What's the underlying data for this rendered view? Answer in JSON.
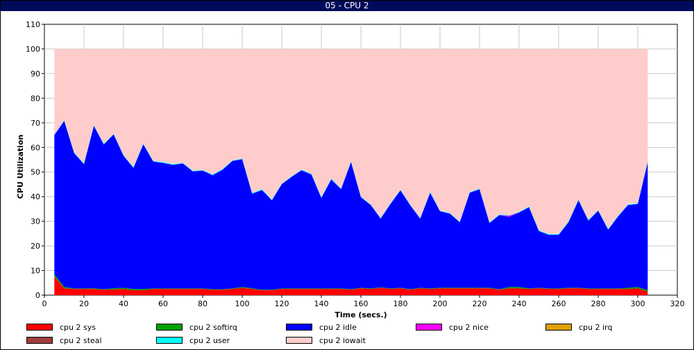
{
  "window": {
    "title": "05 - CPU 2"
  },
  "chart_data": {
    "type": "area",
    "stacked": true,
    "xlabel": "Time (secs.)",
    "ylabel": "CPU Utilization",
    "xlim": [
      0,
      320
    ],
    "ylim": [
      0,
      110
    ],
    "xticks": [
      0,
      20,
      40,
      60,
      80,
      100,
      120,
      140,
      160,
      180,
      200,
      220,
      240,
      260,
      280,
      300,
      320
    ],
    "yticks": [
      0,
      10,
      20,
      30,
      40,
      50,
      60,
      70,
      80,
      90,
      100,
      110
    ],
    "grid": true,
    "legend_position": "bottom",
    "x": [
      5,
      10,
      15,
      20,
      25,
      30,
      35,
      40,
      45,
      50,
      55,
      60,
      65,
      70,
      75,
      80,
      85,
      90,
      95,
      100,
      105,
      110,
      115,
      120,
      125,
      130,
      135,
      140,
      145,
      150,
      155,
      160,
      165,
      170,
      175,
      180,
      185,
      190,
      195,
      200,
      205,
      210,
      215,
      220,
      225,
      230,
      235,
      240,
      245,
      250,
      255,
      260,
      265,
      270,
      275,
      280,
      285,
      290,
      295,
      300,
      305
    ],
    "series": [
      {
        "name": "cpu 2 sys",
        "color": "#ff0000",
        "values": [
          7.5,
          2.8,
          2.5,
          2.5,
          2.5,
          2.2,
          2.3,
          2.5,
          2.0,
          2.0,
          2.5,
          2.5,
          2.5,
          2.5,
          2.5,
          2.5,
          2.2,
          2.2,
          2.5,
          3.0,
          2.5,
          2.0,
          2.0,
          2.5,
          2.5,
          2.5,
          2.5,
          2.5,
          2.5,
          2.5,
          2.2,
          2.8,
          2.5,
          3.0,
          2.5,
          2.8,
          2.2,
          2.8,
          2.5,
          2.8,
          2.8,
          2.8,
          2.8,
          2.8,
          2.8,
          2.2,
          2.8,
          2.8,
          2.5,
          2.8,
          2.5,
          2.5,
          2.8,
          2.8,
          2.5,
          2.5,
          2.5,
          2.5,
          2.5,
          2.8,
          1.5
        ]
      },
      {
        "name": "cpu 2 softirq",
        "color": "#00a000",
        "values": [
          1.0,
          0.5,
          0.2,
          0.2,
          0.3,
          0.2,
          0.5,
          0.5,
          0.5,
          0.5,
          0.2,
          0.2,
          0.2,
          0.2,
          0.2,
          0.2,
          0.2,
          0.2,
          0.2,
          0.3,
          0.3,
          0.2,
          0.2,
          0.2,
          0.2,
          0.2,
          0.2,
          0.2,
          0.2,
          0.2,
          0.2,
          0.2,
          0.2,
          0.2,
          0.2,
          0.2,
          0.2,
          0.2,
          0.2,
          0.2,
          0.2,
          0.2,
          0.2,
          0.2,
          0.2,
          0.2,
          0.5,
          0.5,
          0.2,
          0.2,
          0.2,
          0.2,
          0.2,
          0.2,
          0.2,
          0.2,
          0.2,
          0.2,
          0.5,
          0.5,
          0.5
        ]
      },
      {
        "name": "cpu 2 idle",
        "color": "#0000ff",
        "values": [
          56.5,
          67.5,
          55.0,
          50.5,
          66.0,
          58.8,
          62.5,
          53.6,
          49.2,
          58.8,
          51.6,
          51.0,
          50.2,
          50.8,
          47.6,
          47.9,
          46.3,
          48.5,
          51.8,
          51.9,
          38.4,
          40.5,
          36.3,
          42.4,
          45.4,
          48.0,
          46.3,
          36.8,
          44.3,
          40.4,
          51.7,
          36.8,
          33.9,
          27.9,
          34.4,
          39.6,
          34.0,
          28.1,
          38.9,
          31.1,
          30.1,
          26.6,
          38.6,
          40.0,
          26.3,
          30.1,
          28.5,
          30.3,
          33.0,
          23.0,
          21.8,
          21.8,
          26.7,
          35.6,
          27.6,
          31.6,
          23.9,
          29.2,
          33.6,
          33.7,
          52.0
        ]
      },
      {
        "name": "cpu 2 nice",
        "color": "#ff00ff",
        "values": [
          0.0,
          0.0,
          0.0,
          0.0,
          0.0,
          0.0,
          0.0,
          0.0,
          0.0,
          0.0,
          0.0,
          0.0,
          0.0,
          0.0,
          0.0,
          0.0,
          0.0,
          0.0,
          0.0,
          0.0,
          0.0,
          0.0,
          0.0,
          0.0,
          0.0,
          0.0,
          0.0,
          0.0,
          0.0,
          0.0,
          0.0,
          0.0,
          0.0,
          0.0,
          0.0,
          0.0,
          0.0,
          0.0,
          0.0,
          0.0,
          0.0,
          0.0,
          0.0,
          0.0,
          0.0,
          0.0,
          0.5,
          0.0,
          0.0,
          0.0,
          0.0,
          0.0,
          0.0,
          0.0,
          0.0,
          0.0,
          0.0,
          0.0,
          0.0,
          0.0,
          0.0
        ]
      },
      {
        "name": "cpu 2 irq",
        "color": "#e0a000",
        "values": [
          0.0,
          0.0,
          0.0,
          0.0,
          0.0,
          0.0,
          0.0,
          0.0,
          0.0,
          0.0,
          0.0,
          0.0,
          0.0,
          0.0,
          0.0,
          0.0,
          0.0,
          0.0,
          0.0,
          0.0,
          0.0,
          0.0,
          0.0,
          0.0,
          0.0,
          0.0,
          0.0,
          0.0,
          0.0,
          0.0,
          0.0,
          0.0,
          0.0,
          0.0,
          0.0,
          0.0,
          0.0,
          0.0,
          0.0,
          0.0,
          0.0,
          0.0,
          0.0,
          0.0,
          0.0,
          0.0,
          0.0,
          0.0,
          0.0,
          0.0,
          0.0,
          0.0,
          0.0,
          0.0,
          0.0,
          0.0,
          0.0,
          0.0,
          0.0,
          0.0,
          0.0
        ]
      },
      {
        "name": "cpu 2 steal",
        "color": "#a03c3c",
        "values": [
          0.0,
          0.0,
          0.0,
          0.0,
          0.0,
          0.0,
          0.0,
          0.0,
          0.0,
          0.0,
          0.0,
          0.0,
          0.0,
          0.0,
          0.0,
          0.0,
          0.0,
          0.0,
          0.0,
          0.0,
          0.0,
          0.0,
          0.0,
          0.0,
          0.0,
          0.0,
          0.0,
          0.0,
          0.0,
          0.0,
          0.0,
          0.0,
          0.0,
          0.0,
          0.0,
          0.0,
          0.0,
          0.0,
          0.0,
          0.0,
          0.0,
          0.0,
          0.0,
          0.0,
          0.0,
          0.0,
          0.0,
          0.0,
          0.0,
          0.0,
          0.0,
          0.0,
          0.0,
          0.0,
          0.0,
          0.0,
          0.0,
          0.0,
          0.0,
          0.0,
          0.0
        ]
      },
      {
        "name": "cpu 2 user",
        "color": "#00ffff",
        "values": [
          0.2,
          0.2,
          0.3,
          0.3,
          0.2,
          0.3,
          0.2,
          0.2,
          0.3,
          0.2,
          0.2,
          0.3,
          0.3,
          0.2,
          0.2,
          0.2,
          0.3,
          0.3,
          0.2,
          0.3,
          0.3,
          0.3,
          0.3,
          0.2,
          0.2,
          0.3,
          0.3,
          0.3,
          0.3,
          0.2,
          0.3,
          0.2,
          0.2,
          0.2,
          0.3,
          0.2,
          0.3,
          0.2,
          0.3,
          0.2,
          0.2,
          0.2,
          0.2,
          0.3,
          0.2,
          0.3,
          0.2,
          0.2,
          0.3,
          0.3,
          0.3,
          0.3,
          0.3,
          0.2,
          0.3,
          0.2,
          0.3,
          0.3,
          0.2,
          0.3,
          0.3
        ]
      },
      {
        "name": "cpu 2 iowait",
        "color": "#ffcccc",
        "values": [
          34.8,
          29.0,
          42.0,
          46.5,
          31.0,
          38.5,
          34.5,
          43.2,
          48.0,
          38.5,
          45.5,
          46.0,
          46.8,
          46.3,
          49.5,
          49.2,
          51.0,
          48.8,
          45.3,
          44.5,
          58.5,
          57.0,
          61.2,
          54.7,
          51.7,
          49.0,
          50.7,
          60.2,
          52.7,
          56.7,
          45.6,
          60.0,
          63.2,
          68.7,
          62.6,
          57.2,
          63.3,
          68.7,
          58.1,
          65.7,
          66.7,
          70.2,
          58.2,
          56.7,
          70.5,
          67.2,
          67.5,
          66.2,
          64.0,
          73.7,
          75.2,
          75.2,
          70.0,
          61.2,
          69.4,
          65.5,
          73.1,
          67.8,
          63.2,
          62.7,
          45.7
        ]
      }
    ]
  }
}
